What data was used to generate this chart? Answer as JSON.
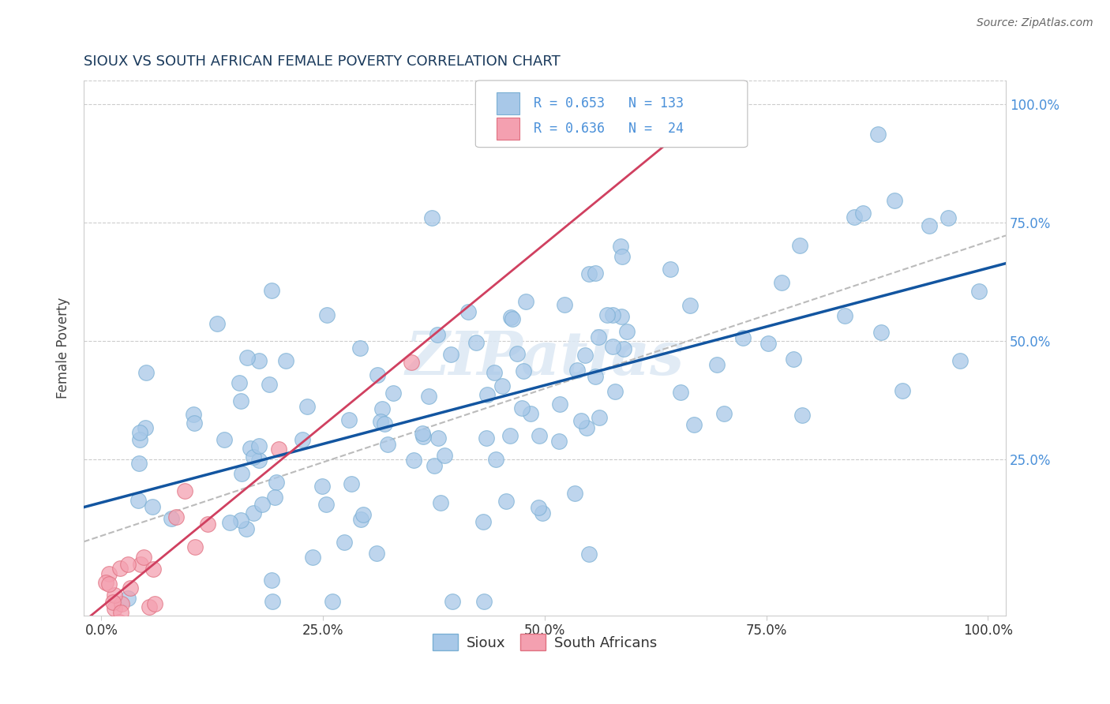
{
  "title": "SIOUX VS SOUTH AFRICAN FEMALE POVERTY CORRELATION CHART",
  "source": "Source: ZipAtlas.com",
  "ylabel": "Female Poverty",
  "xlim": [
    -0.02,
    1.02
  ],
  "ylim": [
    -0.08,
    1.05
  ],
  "xticks": [
    0.0,
    0.25,
    0.5,
    0.75,
    1.0
  ],
  "xticklabels": [
    "0.0%",
    "25.0%",
    "50.0%",
    "75.0%",
    "100.0%"
  ],
  "yticks_right": [
    0.25,
    0.5,
    0.75,
    1.0
  ],
  "yticklabels_right": [
    "25.0%",
    "50.0%",
    "75.0%",
    "100.0%"
  ],
  "sioux_color": "#a8c8e8",
  "sioux_edge": "#7aafd4",
  "sa_color": "#f4a0b0",
  "sa_edge": "#e07080",
  "regression_sioux_color": "#1255a0",
  "regression_sa_color": "#d04060",
  "regression_dashed_color": "#bbbbbb",
  "R_sioux": 0.653,
  "N_sioux": 133,
  "R_sa": 0.636,
  "N_sa": 24,
  "watermark": "ZIPatlas",
  "legend_sioux": "Sioux",
  "legend_sa": "South Africans",
  "title_color": "#1a3a5c",
  "tick_color_right": "#4a90d9",
  "tick_color_bottom": "#333333",
  "grid_color": "#cccccc",
  "source_color": "#666666"
}
